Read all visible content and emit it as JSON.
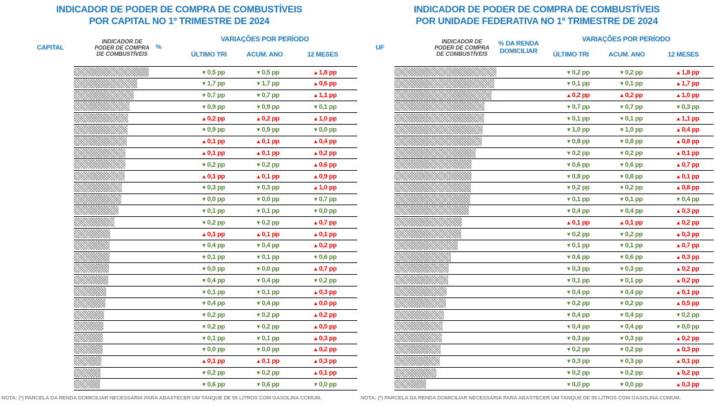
{
  "colors": {
    "header_blue": "#1B76BD",
    "indicator_label_dark": "#404040",
    "down_green": "#548235",
    "up_red": "#FE0000",
    "bar_hatch_gray": "#9A9A9A",
    "note_gray": "#8C8C8C",
    "separator_black": "#0A0A0A"
  },
  "chart_data": [
    {
      "type": "bar",
      "orientation": "horizontal",
      "title_line1": "INDICADOR DE PODER DE COMPRA DE COMBUSTÍVEIS",
      "title_line2": "POR CAPITAL NO 1º TRIMESTRE DE 2024",
      "col_entity": "CAPITAL",
      "col_indicator_lines": [
        "INDICADOR DE",
        "PODER DE COMPRA",
        "DE COMBUSTÍVEIS"
      ],
      "col_percent_lines": [
        "%"
      ],
      "col_variations": "VARIAÇÕES POR PERÍODO",
      "col_sub": [
        "ÚLTIMO TRI",
        "ACUM. ANO",
        "12 MESES"
      ],
      "note": "NOTA: (*) PARCELA DA RENDA DOMICILIAR NECESSÁRIA PARA ABASTECER UM TANQUE DE 55 LITROS COM GASOLINA COMUM.",
      "row_labels_visible": false,
      "bar_unit": "estimated px length (underlying % values not labeled in image)",
      "rows": [
        {
          "bar": 109,
          "v": [
            [
              "down",
              "0,5 pp"
            ],
            [
              "down",
              "0,5 pp"
            ],
            [
              "up",
              "1,8 pp"
            ]
          ]
        },
        {
          "bar": 92,
          "v": [
            [
              "down",
              "1,7 pp"
            ],
            [
              "down",
              "1,7 pp"
            ],
            [
              "up",
              "0,6 pp"
            ]
          ]
        },
        {
          "bar": 87,
          "v": [
            [
              "down",
              "0,7 pp"
            ],
            [
              "down",
              "0,7 pp"
            ],
            [
              "up",
              "1,1 pp"
            ]
          ]
        },
        {
          "bar": 81,
          "v": [
            [
              "down",
              "0,9 pp"
            ],
            [
              "down",
              "0,9 pp"
            ],
            [
              "down",
              "0,1 pp"
            ]
          ]
        },
        {
          "bar": 79,
          "v": [
            [
              "up",
              "0,2 pp"
            ],
            [
              "up",
              "0,2 pp"
            ],
            [
              "up",
              "1,0 pp"
            ]
          ]
        },
        {
          "bar": 78,
          "v": [
            [
              "down",
              "0,9 pp"
            ],
            [
              "down",
              "0,9 pp"
            ],
            [
              "down",
              "0,0 pp"
            ]
          ]
        },
        {
          "bar": 77,
          "v": [
            [
              "up",
              "0,1 pp"
            ],
            [
              "up",
              "0,1 pp"
            ],
            [
              "up",
              "0,4 pp"
            ]
          ]
        },
        {
          "bar": 75,
          "v": [
            [
              "up",
              "0,1 pp"
            ],
            [
              "up",
              "0,1 pp"
            ],
            [
              "up",
              "0,2 pp"
            ]
          ]
        },
        {
          "bar": 75,
          "v": [
            [
              "down",
              "0,2 pp"
            ],
            [
              "down",
              "0,2 pp"
            ],
            [
              "up",
              "0,6 pp"
            ]
          ]
        },
        {
          "bar": 74,
          "v": [
            [
              "up",
              "0,1 pp"
            ],
            [
              "up",
              "0,1 pp"
            ],
            [
              "up",
              "0,9 pp"
            ]
          ]
        },
        {
          "bar": 70,
          "v": [
            [
              "down",
              "0,3 pp"
            ],
            [
              "down",
              "0,3 pp"
            ],
            [
              "up",
              "1,0 pp"
            ]
          ]
        },
        {
          "bar": 69,
          "v": [
            [
              "down",
              "0,0 pp"
            ],
            [
              "down",
              "0,0 pp"
            ],
            [
              "down",
              "0,7 pp"
            ]
          ]
        },
        {
          "bar": 65,
          "v": [
            [
              "down",
              "0,1 pp"
            ],
            [
              "down",
              "0,1 pp"
            ],
            [
              "down",
              "0,0 pp"
            ]
          ]
        },
        {
          "bar": 59,
          "v": [
            [
              "down",
              "0,2 pp"
            ],
            [
              "down",
              "0,2 pp"
            ],
            [
              "up",
              "0,7 pp"
            ]
          ]
        },
        {
          "bar": 53,
          "v": [
            [
              "up",
              "0,1 pp"
            ],
            [
              "up",
              "0,1 pp"
            ],
            [
              "up",
              "0,1 pp"
            ]
          ]
        },
        {
          "bar": 52,
          "v": [
            [
              "down",
              "0,4 pp"
            ],
            [
              "down",
              "0,4 pp"
            ],
            [
              "up",
              "0,2 pp"
            ]
          ]
        },
        {
          "bar": 52,
          "v": [
            [
              "down",
              "0,1 pp"
            ],
            [
              "down",
              "0,1 pp"
            ],
            [
              "down",
              "0,6 pp"
            ]
          ]
        },
        {
          "bar": 51,
          "v": [
            [
              "down",
              "0,0 pp"
            ],
            [
              "down",
              "0,0 pp"
            ],
            [
              "up",
              "0,7 pp"
            ]
          ]
        },
        {
          "bar": 50,
          "v": [
            [
              "down",
              "0,4 pp"
            ],
            [
              "down",
              "0,4 pp"
            ],
            [
              "down",
              "0,2 pp"
            ]
          ]
        },
        {
          "bar": 47,
          "v": [
            [
              "down",
              "0,1 pp"
            ],
            [
              "down",
              "0,1 pp"
            ],
            [
              "up",
              "0,3 pp"
            ]
          ]
        },
        {
          "bar": 46,
          "v": [
            [
              "down",
              "0,4 pp"
            ],
            [
              "down",
              "0,4 pp"
            ],
            [
              "up",
              "0,0 pp"
            ]
          ]
        },
        {
          "bar": 44,
          "v": [
            [
              "down",
              "0,2 pp"
            ],
            [
              "down",
              "0,2 pp"
            ],
            [
              "up",
              "0,2 pp"
            ]
          ]
        },
        {
          "bar": 43,
          "v": [
            [
              "down",
              "0,2 pp"
            ],
            [
              "down",
              "0,2 pp"
            ],
            [
              "up",
              "0,0 pp"
            ]
          ]
        },
        {
          "bar": 42,
          "v": [
            [
              "down",
              "0,1 pp"
            ],
            [
              "down",
              "0,1 pp"
            ],
            [
              "up",
              "0,3 pp"
            ]
          ]
        },
        {
          "bar": 42,
          "v": [
            [
              "down",
              "0,0 pp"
            ],
            [
              "down",
              "0,0 pp"
            ],
            [
              "up",
              "0,2 pp"
            ]
          ]
        },
        {
          "bar": 40,
          "v": [
            [
              "up",
              "0,1 pp"
            ],
            [
              "up",
              "0,1 pp"
            ],
            [
              "up",
              "0,3 pp"
            ]
          ]
        },
        {
          "bar": 39,
          "v": [
            [
              "down",
              "0,2 pp"
            ],
            [
              "down",
              "0,2 pp"
            ],
            [
              "up",
              "0,1 pp"
            ]
          ]
        },
        {
          "bar": 38,
          "v": [
            [
              "down",
              "0,6 pp"
            ],
            [
              "down",
              "0,6 pp"
            ],
            [
              "down",
              "0,0 pp"
            ]
          ]
        }
      ]
    },
    {
      "type": "bar",
      "orientation": "horizontal",
      "title_line1": "INDICADOR DE PODER DE COMPRA DE COMBUSTÍVEIS",
      "title_line2": "POR UNIDADE FEDERATIVA NO 1º TRIMESTRE DE 2024",
      "col_entity": "UF",
      "col_indicator_lines": [
        "INDICADOR DE",
        "PODER DE COMPRA",
        "DE COMBUSTÍVEIS"
      ],
      "col_percent_lines": [
        "% DA RENDA",
        "DOMICILIAR"
      ],
      "col_variations": "VARIAÇÕES POR PERÍODO",
      "col_sub": [
        "ÚLTIMO TRI",
        "ACUM. ANO",
        "12 MESES"
      ],
      "note": "NOTA: (*) PARCELA DA RENDA DOMICILIAR NECESSÁRIA PARA ABASTECER UM TANQUE DE 55 LITROS COM GASOLINA COMUM.",
      "row_labels_visible": false,
      "bar_unit": "estimated px length (underlying % values not labeled in image)",
      "rows": [
        {
          "bar": 148,
          "v": [
            [
              "down",
              "0,2 pp"
            ],
            [
              "down",
              "0,2 pp"
            ],
            [
              "up",
              "1,8 pp"
            ]
          ]
        },
        {
          "bar": 145,
          "v": [
            [
              "down",
              "0,1 pp"
            ],
            [
              "down",
              "0,1 pp"
            ],
            [
              "up",
              "1,7 pp"
            ]
          ]
        },
        {
          "bar": 141,
          "v": [
            [
              "up",
              "0,2 pp"
            ],
            [
              "up",
              "0,2 pp"
            ],
            [
              "up",
              "1,0 pp"
            ]
          ]
        },
        {
          "bar": 131,
          "v": [
            [
              "down",
              "0,7 pp"
            ],
            [
              "down",
              "0,7 pp"
            ],
            [
              "down",
              "0,3 pp"
            ]
          ]
        },
        {
          "bar": 130,
          "v": [
            [
              "down",
              "0,1 pp"
            ],
            [
              "down",
              "0,1 pp"
            ],
            [
              "up",
              "1,1 pp"
            ]
          ]
        },
        {
          "bar": 128,
          "v": [
            [
              "down",
              "1,0 pp"
            ],
            [
              "down",
              "1,0 pp"
            ],
            [
              "up",
              "0,4 pp"
            ]
          ]
        },
        {
          "bar": 127,
          "v": [
            [
              "down",
              "0,8 pp"
            ],
            [
              "down",
              "0,8 pp"
            ],
            [
              "up",
              "0,8 pp"
            ]
          ]
        },
        {
          "bar": 118,
          "v": [
            [
              "down",
              "0,2 pp"
            ],
            [
              "down",
              "0,2 pp"
            ],
            [
              "up",
              "0,1 pp"
            ]
          ]
        },
        {
          "bar": 112,
          "v": [
            [
              "down",
              "0,6 pp"
            ],
            [
              "down",
              "0,6 pp"
            ],
            [
              "up",
              "0,7 pp"
            ]
          ]
        },
        {
          "bar": 112,
          "v": [
            [
              "down",
              "0,8 pp"
            ],
            [
              "down",
              "0,8 pp"
            ],
            [
              "up",
              "0,1 pp"
            ]
          ]
        },
        {
          "bar": 111,
          "v": [
            [
              "down",
              "0,2 pp"
            ],
            [
              "down",
              "0,2 pp"
            ],
            [
              "up",
              "0,8 pp"
            ]
          ]
        },
        {
          "bar": 110,
          "v": [
            [
              "down",
              "0,1 pp"
            ],
            [
              "down",
              "0,1 pp"
            ],
            [
              "down",
              "0,4 pp"
            ]
          ]
        },
        {
          "bar": 108,
          "v": [
            [
              "down",
              "0,4 pp"
            ],
            [
              "down",
              "0,4 pp"
            ],
            [
              "up",
              "0,3 pp"
            ]
          ]
        },
        {
          "bar": 98,
          "v": [
            [
              "up",
              "0,1 pp"
            ],
            [
              "up",
              "0,1 pp"
            ],
            [
              "up",
              "0,2 pp"
            ]
          ]
        },
        {
          "bar": 97,
          "v": [
            [
              "down",
              "0,2 pp"
            ],
            [
              "down",
              "0,2 pp"
            ],
            [
              "up",
              "0,3 pp"
            ]
          ]
        },
        {
          "bar": 92,
          "v": [
            [
              "down",
              "0,1 pp"
            ],
            [
              "down",
              "0,1 pp"
            ],
            [
              "up",
              "0,7 pp"
            ]
          ]
        },
        {
          "bar": 82,
          "v": [
            [
              "down",
              "0,6 pp"
            ],
            [
              "down",
              "0,6 pp"
            ],
            [
              "up",
              "0,3 pp"
            ]
          ]
        },
        {
          "bar": 79,
          "v": [
            [
              "down",
              "0,3 pp"
            ],
            [
              "down",
              "0,3 pp"
            ],
            [
              "up",
              "0,2 pp"
            ]
          ]
        },
        {
          "bar": 78,
          "v": [
            [
              "down",
              "0,1 pp"
            ],
            [
              "down",
              "0,1 pp"
            ],
            [
              "up",
              "0,2 pp"
            ]
          ]
        },
        {
          "bar": 76,
          "v": [
            [
              "down",
              "0,4 pp"
            ],
            [
              "down",
              "0,4 pp"
            ],
            [
              "up",
              "0,1 pp"
            ]
          ]
        },
        {
          "bar": 75,
          "v": [
            [
              "down",
              "0,2 pp"
            ],
            [
              "down",
              "0,2 pp"
            ],
            [
              "up",
              "0,5 pp"
            ]
          ]
        },
        {
          "bar": 72,
          "v": [
            [
              "down",
              "0,4 pp"
            ],
            [
              "down",
              "0,4 pp"
            ],
            [
              "down",
              "0,2 pp"
            ]
          ]
        },
        {
          "bar": 70,
          "v": [
            [
              "down",
              "0,4 pp"
            ],
            [
              "down",
              "0,4 pp"
            ],
            [
              "down",
              "0,0 pp"
            ]
          ]
        },
        {
          "bar": 69,
          "v": [
            [
              "down",
              "0,3 pp"
            ],
            [
              "down",
              "0,3 pp"
            ],
            [
              "up",
              "0,2 pp"
            ]
          ]
        },
        {
          "bar": 67,
          "v": [
            [
              "down",
              "0,2 pp"
            ],
            [
              "down",
              "0,2 pp"
            ],
            [
              "up",
              "0,3 pp"
            ]
          ]
        },
        {
          "bar": 66,
          "v": [
            [
              "down",
              "0,3 pp"
            ],
            [
              "down",
              "0,3 pp"
            ],
            [
              "up",
              "0,1 pp"
            ]
          ]
        },
        {
          "bar": 61,
          "v": [
            [
              "down",
              "0,2 pp"
            ],
            [
              "down",
              "0,2 pp"
            ],
            [
              "up",
              "0,2 pp"
            ]
          ]
        },
        {
          "bar": 46,
          "v": [
            [
              "down",
              "0,0 pp"
            ],
            [
              "down",
              "0,0 pp"
            ],
            [
              "up",
              "0,3 pp"
            ]
          ]
        }
      ]
    }
  ]
}
